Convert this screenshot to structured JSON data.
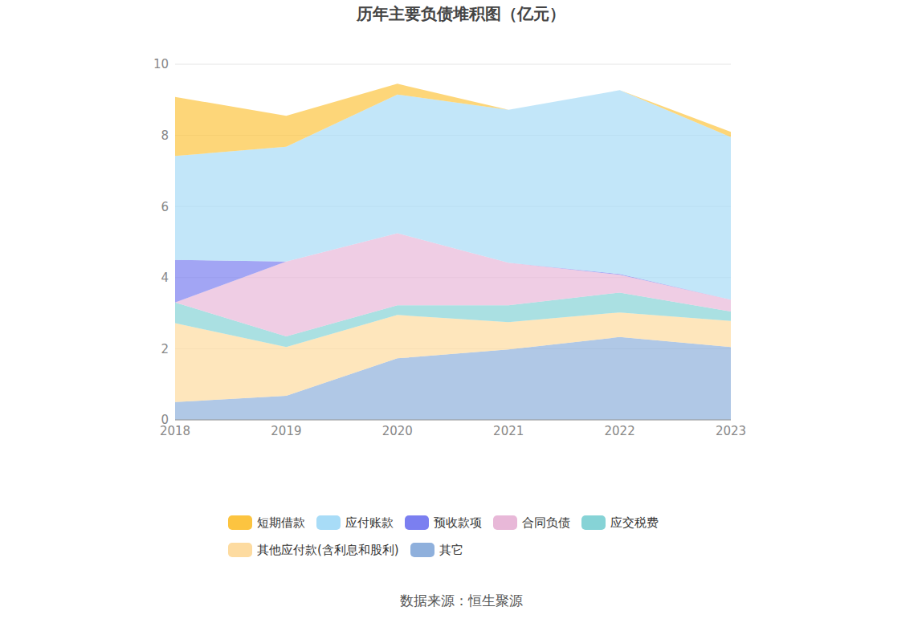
{
  "chart_data": {
    "type": "area",
    "title": "历年主要负债堆积图（亿元）",
    "source": "数据来源：恒生聚源",
    "categories": [
      "2018",
      "2019",
      "2020",
      "2021",
      "2022",
      "2023"
    ],
    "series": [
      {
        "name": "短期借款",
        "color": "#fcc440",
        "values": [
          1.66,
          0.87,
          0.3,
          0,
          0,
          0.15
        ]
      },
      {
        "name": "应付账款",
        "color": "#a8dcf7",
        "values": [
          2.92,
          3.23,
          3.9,
          4.3,
          5.17,
          4.57
        ]
      },
      {
        "name": "预收款项",
        "color": "#7b7ff0",
        "values": [
          1.2,
          0,
          0,
          0,
          0.02,
          0
        ]
      },
      {
        "name": "合同负债",
        "color": "#e8b8d8",
        "values": [
          0,
          2.1,
          2.03,
          1.2,
          0.5,
          0.33
        ]
      },
      {
        "name": "应交税费",
        "color": "#86d3d6",
        "values": [
          0.58,
          0.3,
          0.27,
          0.47,
          0.56,
          0.27
        ]
      },
      {
        "name": "其他应付款(含利息和股利)",
        "color": "#fddba0",
        "values": [
          2.22,
          1.37,
          1.22,
          0.77,
          0.69,
          0.73
        ]
      },
      {
        "name": "其它",
        "color": "#8fb0dc",
        "values": [
          0.5,
          0.68,
          1.73,
          1.98,
          2.33,
          2.05
        ]
      }
    ],
    "ylim": [
      0,
      10
    ],
    "yticks": [
      0,
      2,
      4,
      6,
      8,
      10
    ],
    "grid": true,
    "stacked": true,
    "legend": "bottom"
  }
}
